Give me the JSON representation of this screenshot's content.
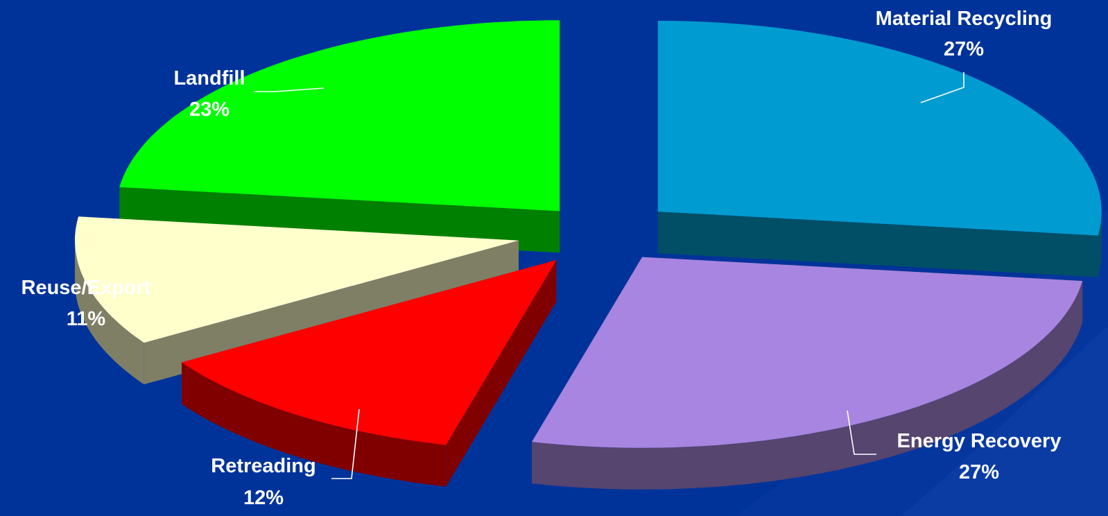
{
  "chart_data": {
    "type": "pie",
    "title": "",
    "style": "3d-exploded",
    "slices": [
      {
        "label": "Material Recycling",
        "value": 27,
        "display": "27%",
        "color": "#009bd1",
        "side": "#004f66"
      },
      {
        "label": "Energy Recovery",
        "value": 27,
        "display": "27%",
        "color": "#a785e0",
        "side": "#55456f"
      },
      {
        "label": "Retreading",
        "value": 12,
        "display": "12%",
        "color": "#ff0000",
        "side": "#800000"
      },
      {
        "label": "Reuse/Export",
        "value": 11,
        "display": "11%",
        "color": "#ffffcc",
        "side": "#7f7f66"
      },
      {
        "label": "Landfill",
        "value": 23,
        "display": "23%",
        "color": "#00ff00",
        "side": "#008000"
      }
    ]
  }
}
